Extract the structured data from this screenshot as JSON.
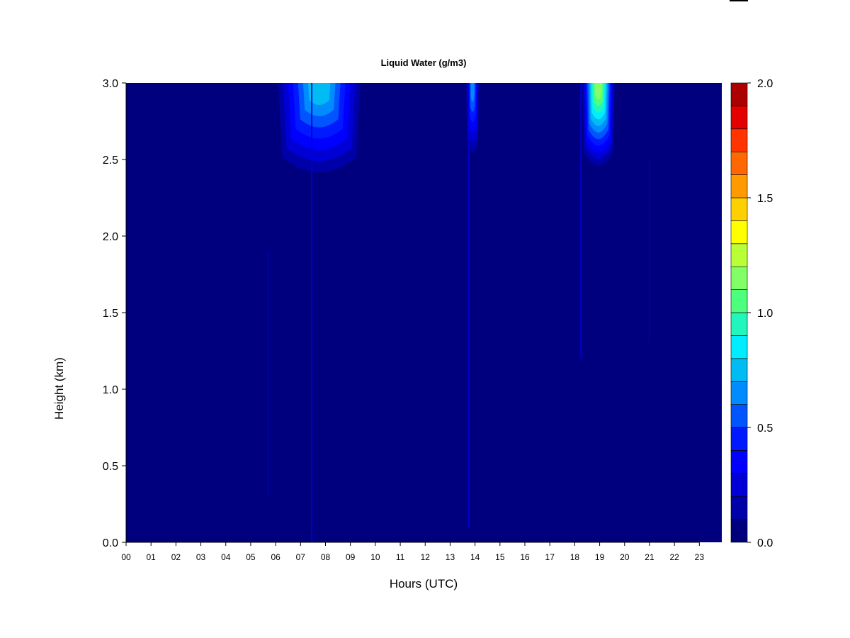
{
  "chart_data": {
    "type": "heatmap",
    "title": "Liquid Water (g/m3)",
    "xlabel": "Hours (UTC)",
    "ylabel": "Height (km)",
    "x_ticks": [
      "00",
      "01",
      "02",
      "03",
      "04",
      "05",
      "06",
      "07",
      "08",
      "09",
      "10",
      "11",
      "12",
      "13",
      "14",
      "15",
      "16",
      "17",
      "18",
      "19",
      "20",
      "21",
      "22",
      "23"
    ],
    "y_ticks": [
      "0.0",
      "0.5",
      "1.0",
      "1.5",
      "2.0",
      "2.5",
      "3.0"
    ],
    "xlim": [
      0,
      23.9
    ],
    "ylim": [
      0,
      3.0
    ],
    "grid": false,
    "colorbar": {
      "ticks": [
        "0.0",
        "0.5",
        "1.0",
        "1.5",
        "2.0"
      ],
      "range": [
        0,
        2.0
      ],
      "levels": [
        0.0,
        0.1,
        0.2,
        0.3,
        0.4,
        0.5,
        0.6,
        0.7,
        0.8,
        0.9,
        1.0,
        1.1,
        1.2,
        1.3,
        1.4,
        1.5,
        1.6,
        1.7,
        1.8,
        1.9,
        2.0
      ],
      "colors": [
        "#00007f",
        "#0000a9",
        "#0000d6",
        "#0000ff",
        "#0019ff",
        "#0055ff",
        "#008cff",
        "#00bcf2",
        "#00ecff",
        "#21f6bd",
        "#4cff7c",
        "#82ff66",
        "#b9ff37",
        "#ffff00",
        "#ffd000",
        "#ff9a00",
        "#ff6700",
        "#ff3400",
        "#e20000",
        "#ad0000"
      ]
    },
    "background_value": 0.0,
    "features": [
      {
        "x_start": 6.1,
        "x_end": 9.4,
        "y_bottom": 2.35,
        "y_top": 3.0,
        "peak": 0.7
      },
      {
        "x_start": 13.65,
        "x_end": 14.15,
        "y_bottom": 2.5,
        "y_top": 3.0,
        "peak": 0.55
      },
      {
        "x_start": 18.3,
        "x_end": 19.6,
        "y_bottom": 2.4,
        "y_top": 3.0,
        "peak": 1.15
      }
    ],
    "streaks": [
      {
        "x": 5.7,
        "y_bottom": 0.3,
        "y_top": 1.9,
        "value": 0.1
      },
      {
        "x": 7.45,
        "y_bottom": 0.0,
        "y_top": 3.0,
        "value": 0.25
      },
      {
        "x": 13.75,
        "y_bottom": 0.1,
        "y_top": 3.0,
        "value": 0.2
      },
      {
        "x": 18.25,
        "y_bottom": 1.2,
        "y_top": 3.0,
        "value": 0.3
      },
      {
        "x": 21.0,
        "y_bottom": 1.3,
        "y_top": 2.5,
        "value": 0.1
      }
    ]
  }
}
